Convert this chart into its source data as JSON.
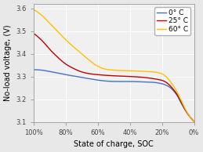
{
  "title": "",
  "xlabel": "State of charge, SOC",
  "ylabel": "No-load voltage, (V)",
  "xlim": [
    1.0,
    0.0
  ],
  "ylim": [
    3.1,
    3.62
  ],
  "xtick_labels": [
    "100%",
    "80%",
    "60%",
    "40%",
    "20%",
    "0%"
  ],
  "xtick_vals": [
    1.0,
    0.8,
    0.6,
    0.4,
    0.2,
    0.0
  ],
  "ytick_vals": [
    3.1,
    3.2,
    3.3,
    3.4,
    3.5,
    3.6
  ],
  "legend": [
    "0° C",
    "25° C",
    "60° C"
  ],
  "colors": [
    "#4472c4",
    "#c00000",
    "#ffc000"
  ],
  "background_color": "#f0f0f0",
  "grid_color": "#ffffff",
  "label_fontsize": 7,
  "tick_fontsize": 6,
  "legend_fontsize": 6.5,
  "curve_0C": [
    [
      1.0,
      3.33
    ],
    [
      0.95,
      3.328
    ],
    [
      0.9,
      3.322
    ],
    [
      0.85,
      3.315
    ],
    [
      0.8,
      3.308
    ],
    [
      0.75,
      3.302
    ],
    [
      0.7,
      3.296
    ],
    [
      0.65,
      3.29
    ],
    [
      0.6,
      3.284
    ],
    [
      0.55,
      3.28
    ],
    [
      0.5,
      3.278
    ],
    [
      0.45,
      3.278
    ],
    [
      0.4,
      3.278
    ],
    [
      0.35,
      3.277
    ],
    [
      0.3,
      3.276
    ],
    [
      0.25,
      3.274
    ],
    [
      0.2,
      3.268
    ],
    [
      0.175,
      3.262
    ],
    [
      0.15,
      3.252
    ],
    [
      0.125,
      3.235
    ],
    [
      0.1,
      3.21
    ],
    [
      0.08,
      3.182
    ],
    [
      0.06,
      3.158
    ],
    [
      0.04,
      3.135
    ],
    [
      0.02,
      3.118
    ],
    [
      0.01,
      3.11
    ],
    [
      0.0,
      3.1
    ]
  ],
  "curve_25C": [
    [
      1.0,
      3.49
    ],
    [
      0.95,
      3.46
    ],
    [
      0.9,
      3.42
    ],
    [
      0.85,
      3.385
    ],
    [
      0.8,
      3.355
    ],
    [
      0.75,
      3.335
    ],
    [
      0.7,
      3.32
    ],
    [
      0.65,
      3.312
    ],
    [
      0.6,
      3.308
    ],
    [
      0.55,
      3.305
    ],
    [
      0.5,
      3.303
    ],
    [
      0.45,
      3.302
    ],
    [
      0.4,
      3.3
    ],
    [
      0.35,
      3.298
    ],
    [
      0.3,
      3.295
    ],
    [
      0.25,
      3.29
    ],
    [
      0.2,
      3.283
    ],
    [
      0.175,
      3.275
    ],
    [
      0.15,
      3.26
    ],
    [
      0.125,
      3.24
    ],
    [
      0.1,
      3.215
    ],
    [
      0.08,
      3.187
    ],
    [
      0.06,
      3.16
    ],
    [
      0.04,
      3.137
    ],
    [
      0.02,
      3.118
    ],
    [
      0.01,
      3.108
    ],
    [
      0.0,
      3.1
    ]
  ],
  "curve_60C": [
    [
      1.0,
      3.595
    ],
    [
      0.95,
      3.57
    ],
    [
      0.9,
      3.535
    ],
    [
      0.85,
      3.498
    ],
    [
      0.8,
      3.462
    ],
    [
      0.75,
      3.43
    ],
    [
      0.7,
      3.4
    ],
    [
      0.65,
      3.37
    ],
    [
      0.6,
      3.345
    ],
    [
      0.55,
      3.332
    ],
    [
      0.5,
      3.328
    ],
    [
      0.45,
      3.326
    ],
    [
      0.4,
      3.325
    ],
    [
      0.35,
      3.324
    ],
    [
      0.3,
      3.322
    ],
    [
      0.25,
      3.32
    ],
    [
      0.2,
      3.312
    ],
    [
      0.175,
      3.3
    ],
    [
      0.15,
      3.28
    ],
    [
      0.125,
      3.255
    ],
    [
      0.1,
      3.225
    ],
    [
      0.08,
      3.195
    ],
    [
      0.06,
      3.165
    ],
    [
      0.04,
      3.138
    ],
    [
      0.02,
      3.118
    ],
    [
      0.01,
      3.108
    ],
    [
      0.0,
      3.1
    ]
  ]
}
